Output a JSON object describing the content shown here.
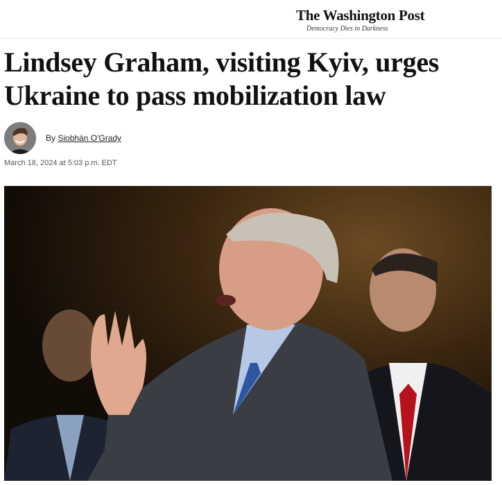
{
  "masthead": {
    "logo": "The Washington Post",
    "tagline": "Democracy Dies in Darkness"
  },
  "article": {
    "headline": "Lindsey Graham, visiting Kyiv, urges Ukraine to pass mobilization law",
    "byline_prefix": "By",
    "author": "Siobhán O'Grady",
    "timestamp": "March 18, 2024 at 5:03 p.m. EDT",
    "photo_alt": "Lindsey Graham speaking with raised hand, two men standing behind him"
  },
  "colors": {
    "text": "#111111",
    "meta": "#555555",
    "divider": "#e6e6e6"
  }
}
